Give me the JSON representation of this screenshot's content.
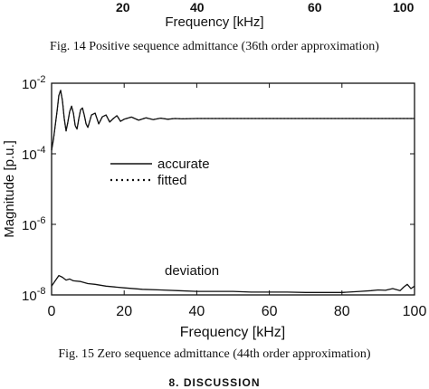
{
  "top_fragment": {
    "tick_labels": [
      "20",
      "40",
      "60",
      "100"
    ],
    "axis_title": "Frequency [kHz]"
  },
  "fig14_caption": "Fig. 14  Positive sequence admittance (36th order approximation)",
  "fig15_caption": "Fig. 15  Zero sequence admittance (44th order approximation)",
  "section_heading": "8. DISCUSSION",
  "chart_data": {
    "type": "line",
    "xlabel": "Frequency [kHz]",
    "ylabel": "Magnitude [p.u.]",
    "xlim": [
      0,
      100
    ],
    "ylim_log10": [
      -8,
      -2
    ],
    "y_scale": "log",
    "x_ticks": [
      "0",
      "20",
      "40",
      "60",
      "80",
      "100"
    ],
    "y_ticks": [
      {
        "base": "10",
        "exp": "-2"
      },
      {
        "base": "10",
        "exp": "-4"
      },
      {
        "base": "10",
        "exp": "-6"
      },
      {
        "base": "10",
        "exp": "-8"
      }
    ],
    "legend": {
      "position": "middle-left",
      "entries": [
        {
          "label": "accurate",
          "style": "solid"
        },
        {
          "label": "fitted",
          "style": "dotted"
        }
      ]
    },
    "annotations": [
      "deviation"
    ],
    "series": [
      {
        "name": "accurate",
        "style": "solid",
        "x": [
          0,
          0.5,
          1,
          1.5,
          2,
          2.5,
          3,
          3.5,
          4,
          4.5,
          5,
          5.5,
          6,
          6.5,
          7,
          7.5,
          8,
          8.5,
          9,
          9.5,
          10,
          11,
          12,
          13,
          14,
          15,
          16,
          17,
          18,
          19,
          20,
          22,
          24,
          26,
          28,
          30,
          32,
          34,
          36,
          40,
          45,
          50,
          60,
          70,
          80,
          90,
          100
        ],
        "y_log10": [
          -3.9,
          -3.6,
          -3.2,
          -2.8,
          -2.35,
          -2.2,
          -2.5,
          -3.0,
          -3.35,
          -3.1,
          -2.8,
          -2.65,
          -2.85,
          -3.2,
          -3.3,
          -3.0,
          -2.75,
          -2.7,
          -2.9,
          -3.15,
          -3.25,
          -2.9,
          -2.85,
          -3.15,
          -2.95,
          -2.9,
          -3.1,
          -3.0,
          -2.92,
          -3.08,
          -3.02,
          -2.96,
          -3.05,
          -2.98,
          -3.03,
          -2.99,
          -3.02,
          -3.0,
          -3.01,
          -3.0,
          -3.0,
          -3.0,
          -3.0,
          -3.0,
          -3.0,
          -3.0,
          -3.0
        ]
      },
      {
        "name": "fitted",
        "style": "dotted",
        "x": [
          0,
          0.5,
          1,
          1.5,
          2,
          2.5,
          3,
          3.5,
          4,
          4.5,
          5,
          5.5,
          6,
          6.5,
          7,
          7.5,
          8,
          8.5,
          9,
          9.5,
          10,
          11,
          12,
          13,
          14,
          15,
          16,
          17,
          18,
          19,
          20,
          22,
          24,
          26,
          28,
          30,
          32,
          34,
          36,
          40,
          45,
          50,
          60,
          70,
          80,
          90,
          100
        ],
        "y_log10": [
          -3.9,
          -3.6,
          -3.2,
          -2.8,
          -2.35,
          -2.2,
          -2.5,
          -3.0,
          -3.35,
          -3.1,
          -2.8,
          -2.65,
          -2.85,
          -3.2,
          -3.3,
          -3.0,
          -2.75,
          -2.7,
          -2.9,
          -3.15,
          -3.25,
          -2.9,
          -2.85,
          -3.15,
          -2.95,
          -2.9,
          -3.1,
          -3.0,
          -2.92,
          -3.08,
          -3.02,
          -2.96,
          -3.05,
          -2.98,
          -3.03,
          -2.99,
          -3.02,
          -3.0,
          -3.01,
          -3.0,
          -3.0,
          -3.0,
          -3.0,
          -3.0,
          -3.0,
          -3.0,
          -3.0
        ]
      },
      {
        "name": "deviation",
        "style": "solid",
        "x": [
          0,
          1,
          2,
          3,
          4,
          5,
          6,
          8,
          10,
          12,
          15,
          20,
          25,
          30,
          35,
          40,
          45,
          50,
          55,
          60,
          65,
          70,
          75,
          80,
          85,
          88,
          90,
          92,
          94,
          96,
          97,
          98,
          99,
          100
        ],
        "y_log10": [
          -7.75,
          -7.6,
          -7.45,
          -7.5,
          -7.58,
          -7.55,
          -7.6,
          -7.62,
          -7.68,
          -7.7,
          -7.75,
          -7.8,
          -7.84,
          -7.86,
          -7.88,
          -7.9,
          -7.9,
          -7.9,
          -7.92,
          -7.92,
          -7.92,
          -7.93,
          -7.93,
          -7.93,
          -7.9,
          -7.88,
          -7.86,
          -7.87,
          -7.82,
          -7.88,
          -7.78,
          -7.7,
          -7.82,
          -7.75
        ]
      }
    ]
  }
}
